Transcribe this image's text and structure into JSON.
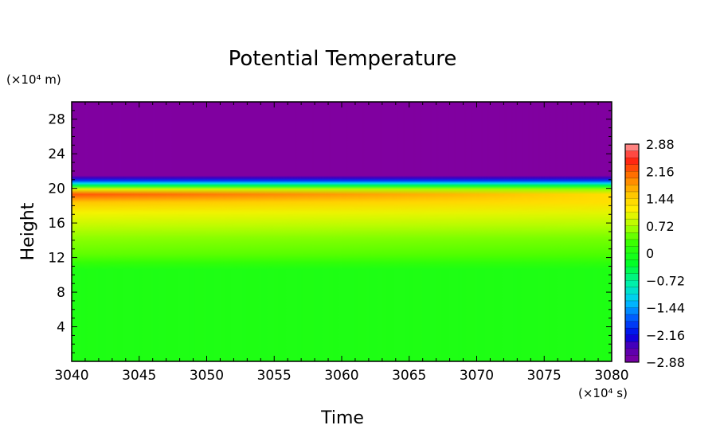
{
  "chart_data": {
    "type": "heatmap",
    "title": "Potential Temperature",
    "xlabel": "Time",
    "ylabel": "Height",
    "x_unit": "(×10⁴ s)",
    "y_unit": "(×10⁴ m)",
    "xlim": [
      3040,
      3080
    ],
    "ylim": [
      0,
      30
    ],
    "x_ticks": [
      3040,
      3045,
      3050,
      3055,
      3060,
      3065,
      3070,
      3075,
      3080
    ],
    "y_ticks": [
      4,
      8,
      12,
      16,
      20,
      24,
      28
    ],
    "colorbar": {
      "range": [
        -2.88,
        2.88
      ],
      "tick_values": [
        2.88,
        2.16,
        1.44,
        0.72,
        0,
        -0.72,
        -1.44,
        -2.16,
        -2.88
      ],
      "tick_labels": [
        "2.88",
        "2.16",
        "1.44",
        "0.72",
        "0",
        "−0.72",
        "−1.44",
        "−2.16",
        "−2.88"
      ],
      "colormap": "rainbow"
    },
    "profile": {
      "height": [
        0,
        10.6,
        11.4,
        12.4,
        14.2,
        15.8,
        17.2,
        18.4,
        19.3,
        19.9,
        20.3,
        20.6,
        20.9,
        21.2,
        21.5,
        22.0,
        30
      ],
      "value_start": [
        0,
        0,
        0.2,
        0.42,
        0.58,
        0.85,
        1.1,
        1.55,
        2.2,
        1.0,
        -0.4,
        -1.2,
        -1.9,
        -2.4,
        -2.88,
        -2.88,
        -2.88
      ],
      "value_end": [
        0,
        0,
        0.15,
        0.35,
        0.5,
        0.75,
        1.0,
        1.3,
        1.3,
        0.6,
        -0.4,
        -1.2,
        -1.9,
        -2.4,
        -2.88,
        -2.88,
        -2.88
      ]
    }
  }
}
